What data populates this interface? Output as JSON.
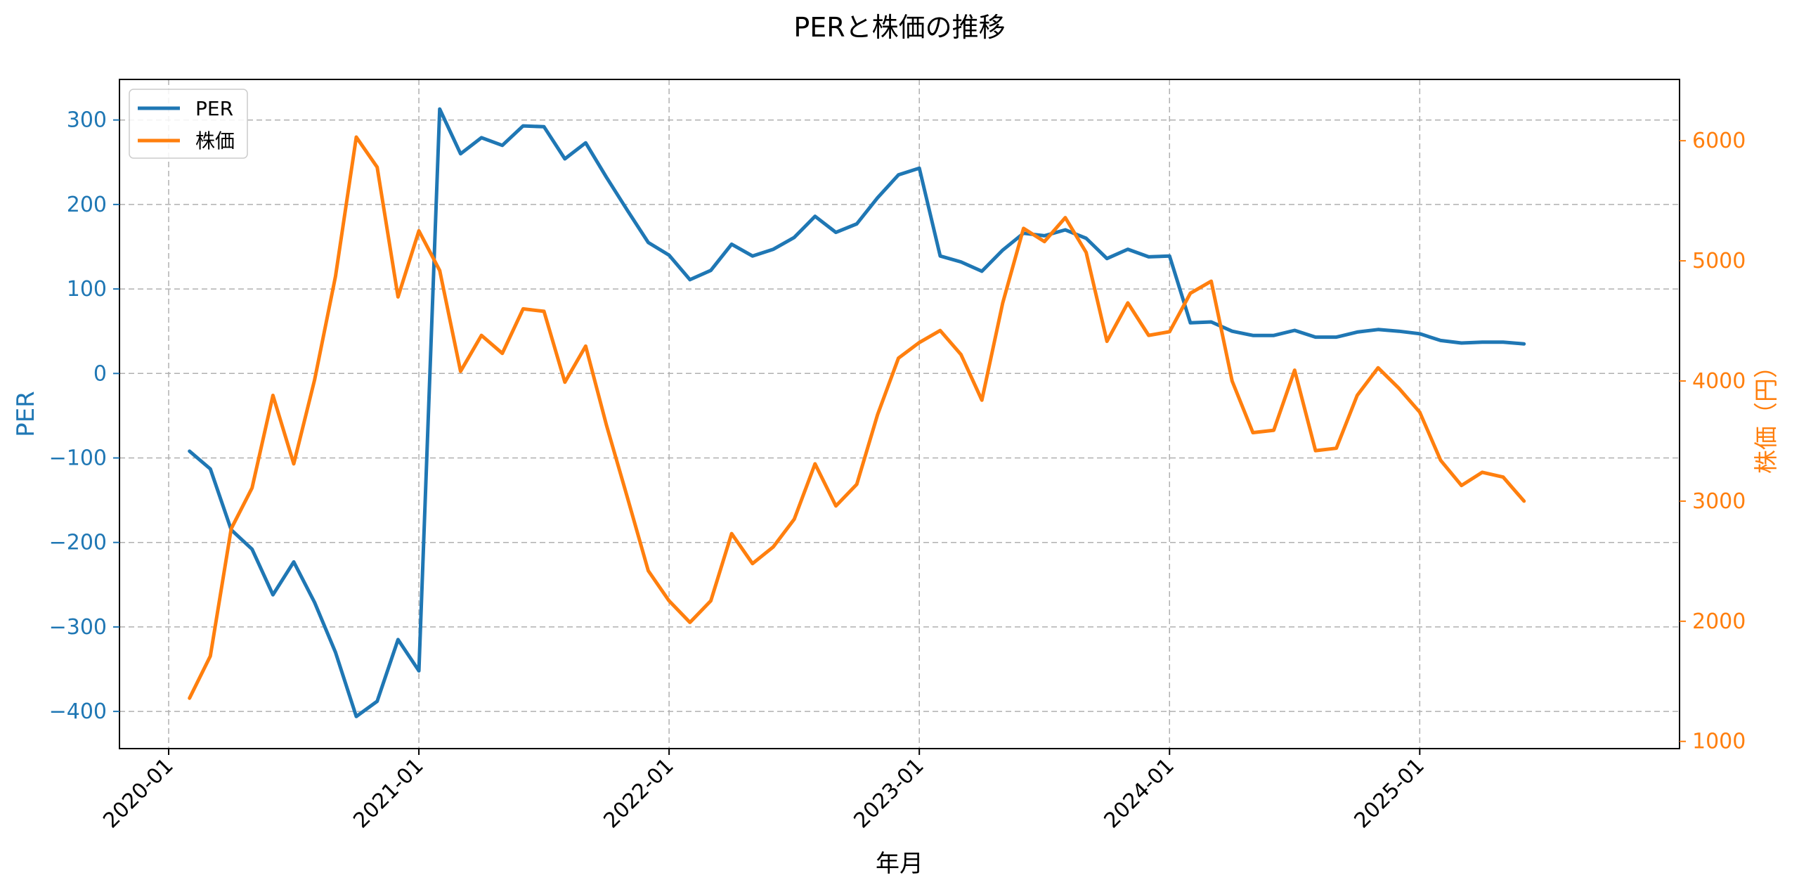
{
  "chart_data": {
    "type": "line",
    "title": "PERと株価の推移",
    "xlabel": "年月",
    "y1label": "PER",
    "y2label": "株価（円）",
    "x_ticks": [
      "2020-01",
      "2021-01",
      "2022-01",
      "2023-01",
      "2024-01",
      "2025-01"
    ],
    "y1_ticks": [
      300,
      200,
      100,
      0,
      -100,
      -200,
      -300,
      -400
    ],
    "y1_tick_labels": [
      "300",
      "200",
      "100",
      "0",
      "−100",
      "−200",
      "−300",
      "−400"
    ],
    "y2_ticks": [
      6000,
      5000,
      4000,
      3000,
      2000,
      1000
    ],
    "y2_tick_labels": [
      "6000",
      "5000",
      "4000",
      "3000",
      "2000",
      "1000"
    ],
    "y1lim": [
      -444,
      348
    ],
    "y2lim": [
      940,
      6510
    ],
    "grid": true,
    "legend_position": "top-left",
    "colors": {
      "per": "#1f77b4",
      "price": "#ff7f0e",
      "grid": "#b0b0b0",
      "axis": "#000000"
    },
    "x": [
      "2020-02",
      "2020-03",
      "2020-04",
      "2020-05",
      "2020-06",
      "2020-07",
      "2020-08",
      "2020-09",
      "2020-10",
      "2020-11",
      "2020-12",
      "2021-01",
      "2021-02",
      "2021-03",
      "2021-04",
      "2021-05",
      "2021-06",
      "2021-07",
      "2021-08",
      "2021-09",
      "2021-10",
      "2021-11",
      "2021-12",
      "2022-01",
      "2022-02",
      "2022-03",
      "2022-04",
      "2022-05",
      "2022-06",
      "2022-07",
      "2022-08",
      "2022-09",
      "2022-10",
      "2022-11",
      "2022-12",
      "2023-01",
      "2023-02",
      "2023-03",
      "2023-04",
      "2023-05",
      "2023-06",
      "2023-07",
      "2023-08",
      "2023-09",
      "2023-10",
      "2023-11",
      "2023-12",
      "2024-01",
      "2024-02",
      "2024-03",
      "2024-04",
      "2024-05",
      "2024-06",
      "2024-07",
      "2024-08",
      "2024-09",
      "2024-10",
      "2024-11",
      "2024-12",
      "2025-01",
      "2025-02",
      "2025-03",
      "2025-04",
      "2025-05",
      "2025-06"
    ],
    "series": [
      {
        "name": "PER",
        "axis": "left",
        "values": [
          -92,
          -113,
          -185,
          -208,
          -262,
          -223,
          -271,
          -330,
          -406,
          -388,
          -315,
          -352,
          313,
          260,
          279,
          270,
          293,
          292,
          254,
          273,
          232,
          193,
          155,
          140,
          111,
          122,
          153,
          139,
          147,
          161,
          186,
          167,
          177,
          208,
          235,
          243,
          139,
          132,
          121,
          146,
          166,
          163,
          170,
          160,
          136,
          147,
          138,
          139,
          60,
          61,
          50,
          45,
          45,
          51,
          43,
          43,
          49,
          52,
          50,
          47,
          39,
          36,
          37,
          37,
          35
        ]
      },
      {
        "name": "株価",
        "axis": "right",
        "values": [
          1360,
          1710,
          2770,
          3110,
          3880,
          3310,
          4010,
          4870,
          6030,
          5780,
          4700,
          5250,
          4920,
          4080,
          4380,
          4230,
          4600,
          4580,
          3990,
          4290,
          3630,
          3030,
          2420,
          2170,
          1990,
          2170,
          2730,
          2480,
          2620,
          2850,
          3310,
          2960,
          3140,
          3720,
          4190,
          4320,
          4420,
          4220,
          3840,
          4650,
          5270,
          5160,
          5360,
          5070,
          4330,
          4650,
          4380,
          4410,
          4730,
          4830,
          4000,
          3570,
          3590,
          4090,
          3420,
          3440,
          3880,
          4110,
          3940,
          3740,
          3340,
          3130,
          3240,
          3200,
          3000
        ]
      }
    ]
  }
}
